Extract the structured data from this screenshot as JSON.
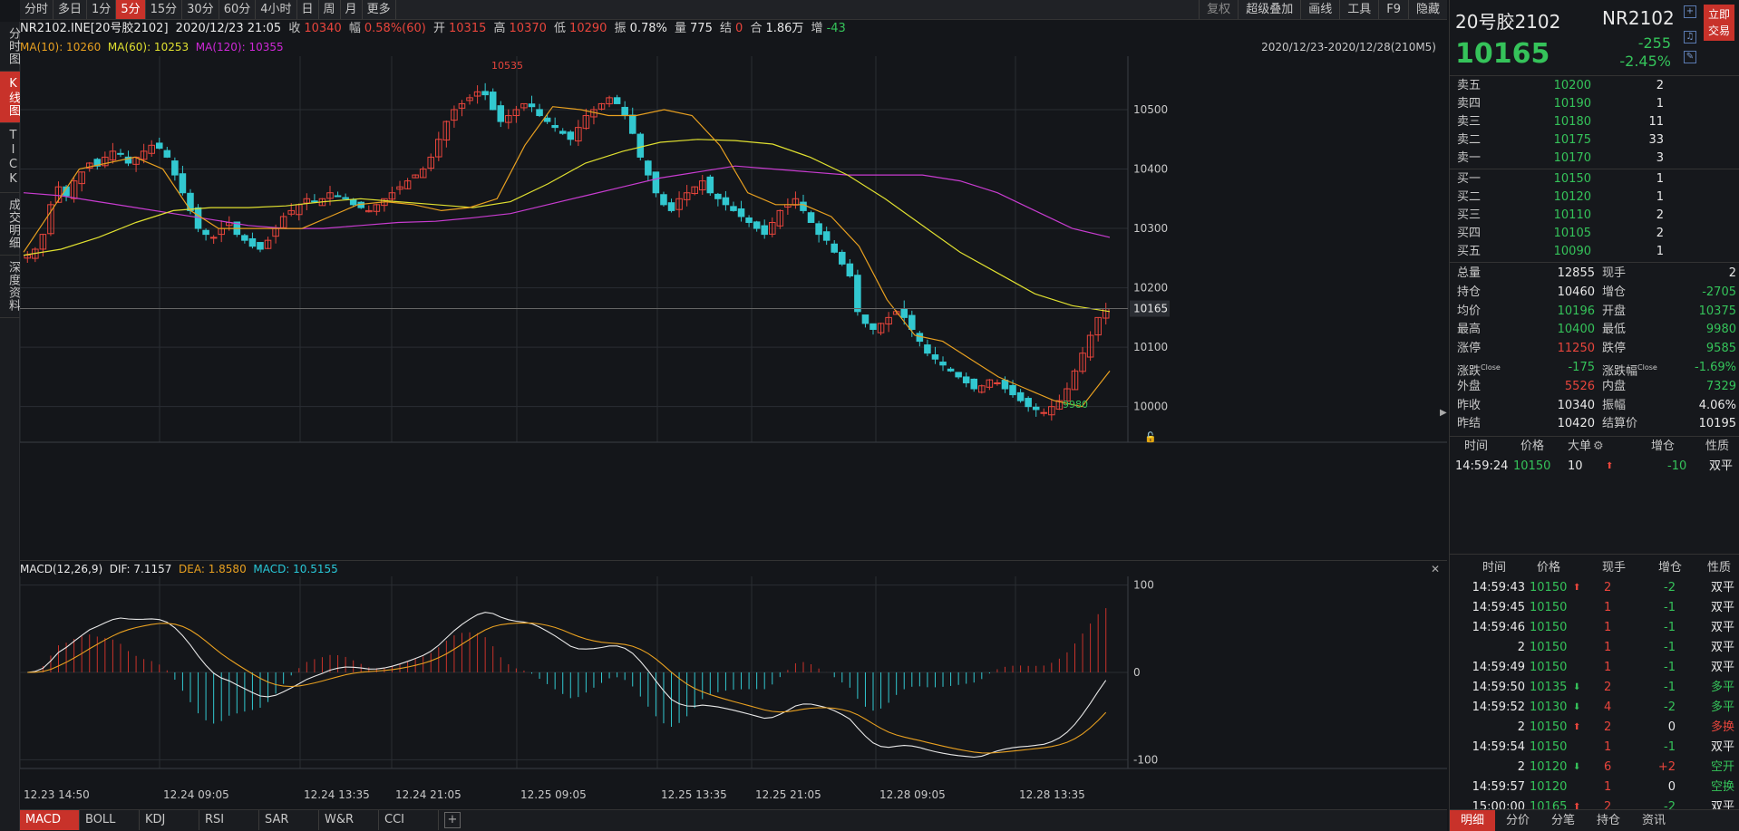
{
  "left_nav": [
    "分时图",
    "K线图",
    "TICK",
    "成交明细",
    "深度资料"
  ],
  "periods": [
    "分时",
    "多日",
    "1分",
    "5分",
    "15分",
    "30分",
    "60分",
    "4小时",
    "日",
    "周",
    "月",
    "更多"
  ],
  "top_right_buttons": [
    "复权",
    "超级叠加",
    "画线",
    "工具",
    "F9",
    "隐藏"
  ],
  "info": {
    "symbol": "NR2102.INE[20号胶2102]",
    "datetime": "2020/12/23 21:05",
    "close_label": "收",
    "close": "10340",
    "amp_label": "幅",
    "amp": "0.58%(60)",
    "open_label": "开",
    "open": "10315",
    "high_label": "高",
    "high": "10370",
    "low_label": "低",
    "low": "10290",
    "vib_label": "振",
    "vib": "0.78%",
    "vol_label": "量",
    "vol": "775",
    "settle_label": "结",
    "settle": "0",
    "oi_label": "合",
    "oi": "1.86万",
    "inc_label": "增",
    "inc": "-43"
  },
  "ma": {
    "ma10": "MA(10): 10260",
    "ma60": "MA(60): 10253",
    "ma120": "MA(120): 10355",
    "range": "2020/12/23-2020/12/28(210M5)"
  },
  "macd_label": {
    "name": "MACD(12,26,9)",
    "dif": "DIF: 7.1157",
    "dea": "DEA: 1.8580",
    "macd": "MACD: 10.5155"
  },
  "indicators": [
    "MACD",
    "BOLL",
    "KDJ",
    "RSI",
    "SAR",
    "W&R",
    "CCI"
  ],
  "chart_data": [
    {
      "type": "candlestick",
      "title": "NR2102.INE[20号胶2102]",
      "y_ticks": [
        10500,
        10400,
        10300,
        10200,
        10100,
        10000
      ],
      "ylim": [
        9940,
        10590
      ],
      "current_price": "10165",
      "high_mark": "10535",
      "low_mark": "9980",
      "x_labels": [
        "12.23 14:50",
        "12.24 09:05",
        "12.24 13:35",
        "12.24 21:05",
        "12.25 09:05",
        "12.25 13:35",
        "12.25 21:05",
        "12.28 09:05",
        "12.28 13:35"
      ],
      "close_path": [
        10255,
        10265,
        10290,
        10340,
        10370,
        10355,
        10380,
        10395,
        10410,
        10405,
        10420,
        10430,
        10425,
        10410,
        10420,
        10430,
        10440,
        10435,
        10420,
        10390,
        10360,
        10330,
        10300,
        10290,
        10285,
        10300,
        10310,
        10290,
        10280,
        10270,
        10265,
        10280,
        10300,
        10320,
        10330,
        10340,
        10350,
        10345,
        10350,
        10360,
        10355,
        10350,
        10340,
        10335,
        10330,
        10340,
        10350,
        10360,
        10370,
        10380,
        10390,
        10400,
        10420,
        10450,
        10480,
        10500,
        10510,
        10520,
        10530,
        10525,
        10500,
        10480,
        10490,
        10500,
        10510,
        10505,
        10490,
        10480,
        10470,
        10460,
        10450,
        10470,
        10490,
        10500,
        10510,
        10520,
        10510,
        10490,
        10460,
        10420,
        10390,
        10360,
        10340,
        10330,
        10350,
        10360,
        10370,
        10380,
        10360,
        10350,
        10340,
        10330,
        10320,
        10310,
        10300,
        10290,
        10310,
        10330,
        10340,
        10350,
        10330,
        10310,
        10290,
        10280,
        10260,
        10240,
        10220,
        10160,
        10140,
        10130,
        10140,
        10150,
        10160,
        10150,
        10130,
        10110,
        10090,
        10080,
        10070,
        10060,
        10050,
        10040,
        10030,
        10035,
        10045,
        10040,
        10030,
        10020,
        10010,
        10000,
        9995,
        9990,
        10000,
        10010,
        10030,
        10060,
        10090,
        10120,
        10150,
        10165
      ],
      "ma120_path": [
        10360,
        10355,
        10345,
        10335,
        10325,
        10315,
        10305,
        10300,
        10300,
        10305,
        10310,
        10312,
        10318,
        10325,
        10340,
        10355,
        10370,
        10385,
        10395,
        10405,
        10400,
        10395,
        10390,
        10390,
        10390,
        10380,
        10360,
        10330,
        10300,
        10285
      ],
      "ma60_path": [
        10255,
        10265,
        10285,
        10310,
        10330,
        10335,
        10335,
        10338,
        10345,
        10350,
        10345,
        10340,
        10335,
        10345,
        10375,
        10410,
        10430,
        10445,
        10450,
        10448,
        10442,
        10420,
        10390,
        10350,
        10305,
        10260,
        10225,
        10190,
        10170,
        10160
      ],
      "ma10_path": [
        10260,
        10330,
        10400,
        10410,
        10420,
        10400,
        10330,
        10300,
        10300,
        10300,
        10300,
        10320,
        10340,
        10345,
        10340,
        10330,
        10335,
        10350,
        10440,
        10505,
        10500,
        10490,
        10490,
        10500,
        10490,
        10440,
        10360,
        10340,
        10340,
        10320,
        10270,
        10180,
        10120,
        10110,
        10080,
        10050,
        10030,
        10010,
        10000,
        10060
      ]
    },
    {
      "type": "macd",
      "name": "MACD(12,26,9)",
      "y_ticks": [
        100,
        0,
        -100
      ],
      "ylim": [
        -110,
        110
      ]
    }
  ],
  "right": {
    "name": "20号胶2102",
    "code": "NR2102",
    "price": "10165",
    "change": "-255",
    "pct": "-2.45%",
    "trade_btn_1": "立即",
    "trade_btn_2": "交易",
    "asks": [
      {
        "l": "卖五",
        "p": "10200",
        "v": "2"
      },
      {
        "l": "卖四",
        "p": "10190",
        "v": "1"
      },
      {
        "l": "卖三",
        "p": "10180",
        "v": "11"
      },
      {
        "l": "卖二",
        "p": "10175",
        "v": "33"
      },
      {
        "l": "卖一",
        "p": "10170",
        "v": "3"
      }
    ],
    "bids": [
      {
        "l": "买一",
        "p": "10150",
        "v": "1"
      },
      {
        "l": "买二",
        "p": "10120",
        "v": "1"
      },
      {
        "l": "买三",
        "p": "10110",
        "v": "2"
      },
      {
        "l": "买四",
        "p": "10105",
        "v": "2"
      },
      {
        "l": "买五",
        "p": "10090",
        "v": "1"
      }
    ],
    "stats": [
      {
        "l1": "总量",
        "v1": "12855",
        "c1": "white",
        "l2": "现手",
        "v2": "2",
        "c2": "white"
      },
      {
        "l1": "持仓",
        "v1": "10460",
        "c1": "white",
        "l2": "增仓",
        "v2": "-2705",
        "c2": "green"
      },
      {
        "l1": "均价",
        "v1": "10196",
        "c1": "green",
        "l2": "开盘",
        "v2": "10375",
        "c2": "green"
      },
      {
        "l1": "最高",
        "v1": "10400",
        "c1": "green",
        "l2": "最低",
        "v2": "9980",
        "c2": "green"
      },
      {
        "l1": "涨停",
        "v1": "11250",
        "c1": "red",
        "l2": "跌停",
        "v2": "9585",
        "c2": "green"
      },
      {
        "l1": "涨跌",
        "s1": "Close",
        "v1": "-175",
        "c1": "green",
        "l2": "涨跌幅",
        "s2": "Close",
        "v2": "-1.69%",
        "c2": "green"
      },
      {
        "l1": "外盘",
        "v1": "5526",
        "c1": "red",
        "l2": "内盘",
        "v2": "7329",
        "c2": "green"
      },
      {
        "l1": "昨收",
        "v1": "10340",
        "c1": "white",
        "l2": "振幅",
        "v2": "4.06%",
        "c2": "white"
      },
      {
        "l1": "昨结",
        "v1": "10420",
        "c1": "white",
        "l2": "结算价",
        "v2": "10195",
        "c2": "white"
      }
    ],
    "big_head": [
      "时间",
      "价格",
      "大单",
      "增仓",
      "性质"
    ],
    "big_rows": [
      {
        "t": "14:59:24",
        "p": "10150",
        "v": "10",
        "inc": "-10",
        "nat": "双平"
      }
    ],
    "tick_head": [
      "时间",
      "价格",
      "现手",
      "增仓",
      "性质"
    ],
    "ticks": [
      {
        "t": "14:59:43",
        "p": "10150",
        "pc": "green",
        "ar": "up",
        "v": "2",
        "inc": "-2",
        "ic": "green",
        "nat": "双平",
        "nc": "white"
      },
      {
        "t": "14:59:45",
        "p": "10150",
        "pc": "green",
        "ar": "",
        "v": "1",
        "inc": "-1",
        "ic": "green",
        "nat": "双平",
        "nc": "white"
      },
      {
        "t": "14:59:46",
        "p": "10150",
        "pc": "green",
        "ar": "",
        "v": "1",
        "inc": "-1",
        "ic": "green",
        "nat": "双平",
        "nc": "white"
      },
      {
        "t": "2",
        "p": "10150",
        "pc": "green",
        "ar": "",
        "v": "1",
        "inc": "-1",
        "ic": "green",
        "nat": "双平",
        "nc": "white"
      },
      {
        "t": "14:59:49",
        "p": "10150",
        "pc": "green",
        "ar": "",
        "v": "1",
        "inc": "-1",
        "ic": "green",
        "nat": "双平",
        "nc": "white"
      },
      {
        "t": "14:59:50",
        "p": "10135",
        "pc": "green",
        "ar": "down",
        "v": "2",
        "inc": "-1",
        "ic": "green",
        "nat": "多平",
        "nc": "green"
      },
      {
        "t": "14:59:52",
        "p": "10130",
        "pc": "green",
        "ar": "down",
        "v": "4",
        "inc": "-2",
        "ic": "green",
        "nat": "多平",
        "nc": "green"
      },
      {
        "t": "2",
        "p": "10150",
        "pc": "green",
        "ar": "up",
        "v": "2",
        "inc": "0",
        "ic": "white",
        "nat": "多换",
        "nc": "red"
      },
      {
        "t": "14:59:54",
        "p": "10150",
        "pc": "green",
        "ar": "",
        "v": "1",
        "inc": "-1",
        "ic": "green",
        "nat": "双平",
        "nc": "white"
      },
      {
        "t": "2",
        "p": "10120",
        "pc": "green",
        "ar": "down",
        "v": "6",
        "inc": "+2",
        "ic": "red",
        "nat": "空开",
        "nc": "green"
      },
      {
        "t": "14:59:57",
        "p": "10120",
        "pc": "green",
        "ar": "",
        "v": "1",
        "inc": "0",
        "ic": "white",
        "nat": "空换",
        "nc": "green"
      },
      {
        "t": "15:00:00",
        "p": "10165",
        "pc": "green",
        "ar": "up",
        "v": "2",
        "inc": "-2",
        "ic": "green",
        "nat": "双平",
        "nc": "white"
      }
    ],
    "tabs": [
      "明细",
      "分价",
      "分笔",
      "持仓",
      "资讯"
    ]
  }
}
